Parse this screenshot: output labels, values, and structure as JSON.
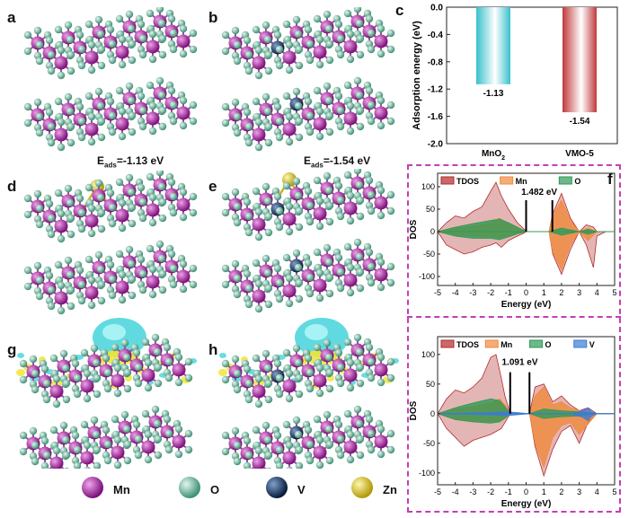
{
  "panels": {
    "a": "a",
    "b": "b",
    "c": "c",
    "d": "d",
    "e": "e",
    "f": "f",
    "g": "g",
    "h": "h"
  },
  "eads": {
    "d": {
      "prefix": "E",
      "sub": "ads",
      "value": "=-1.13 eV"
    },
    "e": {
      "prefix": "E",
      "sub": "ads",
      "value": "=-1.54 eV"
    }
  },
  "legend": [
    {
      "label": "Mn",
      "color": "#a21c9d",
      "icon": "mn-atom-icon"
    },
    {
      "label": "O",
      "color": "#6cc0a4",
      "icon": "o-atom-icon"
    },
    {
      "label": "V",
      "color": "#0d2b5a",
      "icon": "v-atom-icon"
    },
    {
      "label": "Zn",
      "color": "#e3c91c",
      "icon": "zn-atom-icon"
    }
  ],
  "colors": {
    "mn": "#a21c9d",
    "o": "#6cc0a4",
    "v": "#0d2b5a",
    "zn": "#e3c91c",
    "iso_cyan": "#4fd6dd",
    "iso_yellow": "#f0e53a",
    "tdos": "#b22a2a",
    "mn_dos": "#f08a3c",
    "o_dos": "#2e9a56",
    "v_dos": "#3c7bd4",
    "dash": "#c43fb6"
  },
  "chart_data": [
    {
      "type": "bar",
      "panel": "c",
      "categories": [
        "MnO2",
        "VMO-5"
      ],
      "category_display": [
        {
          "main": "MnO",
          "sub": "2"
        },
        {
          "main": "VMO-5",
          "sub": ""
        }
      ],
      "values": [
        -1.13,
        -1.54
      ],
      "value_labels": [
        "-1.13",
        "-1.54"
      ],
      "bar_colors": [
        "#39c1cc",
        "#c0393b"
      ],
      "ylabel": "Adsorption energy (eV)",
      "ylim": [
        -2.0,
        0.0
      ],
      "yticks": [
        "0.0",
        "-0.4",
        "-0.8",
        "-1.2",
        "-1.6",
        "-2.0"
      ]
    },
    {
      "type": "area",
      "panel": "f-top",
      "xlabel": "Energy (eV)",
      "ylabel": "DOS",
      "xlim": [
        -5,
        5
      ],
      "ylim": [
        -120,
        130
      ],
      "xticks": [
        "-5",
        "-4",
        "-3",
        "-2",
        "-1",
        "0",
        "1",
        "2",
        "3",
        "4",
        "5"
      ],
      "yticks": [
        "100",
        "50",
        "0",
        "-50",
        "-100"
      ],
      "legend": [
        "TDOS",
        "Mn",
        "O"
      ],
      "gap_label": "1.482 eV",
      "gap_range": [
        0.0,
        1.482
      ],
      "series": [
        {
          "name": "TDOS",
          "x": [
            -5,
            -4.5,
            -4,
            -3.5,
            -3,
            -2.5,
            -2,
            -1.7,
            -1.4,
            -1,
            -0.5,
            -0.1,
            0,
            1.3,
            1.5,
            2,
            2.5,
            3,
            3.4,
            3.8,
            4,
            4.5,
            5
          ],
          "up": [
            0,
            20,
            35,
            30,
            45,
            55,
            90,
            110,
            80,
            50,
            20,
            5,
            0,
            0,
            40,
            85,
            30,
            0,
            15,
            10,
            0,
            0,
            0
          ],
          "down": [
            0,
            -30,
            -40,
            -50,
            -45,
            -35,
            -30,
            -25,
            -35,
            -20,
            -10,
            -3,
            0,
            0,
            -50,
            -95,
            -40,
            0,
            -30,
            -80,
            -10,
            0,
            0
          ]
        },
        {
          "name": "Mn",
          "x": [
            -5,
            -4,
            -3,
            -2,
            -1.5,
            -1,
            -0.5,
            0,
            1.3,
            1.5,
            2,
            2.5,
            3,
            3.5,
            4,
            5
          ],
          "up": [
            0,
            8,
            12,
            20,
            30,
            18,
            8,
            0,
            0,
            35,
            70,
            25,
            0,
            8,
            0,
            0
          ],
          "down": [
            0,
            -8,
            -10,
            -12,
            -14,
            -10,
            -5,
            0,
            0,
            -45,
            -85,
            -30,
            0,
            -20,
            0,
            0
          ]
        },
        {
          "name": "O",
          "x": [
            -5,
            -4,
            -3,
            -2,
            -1.5,
            -1,
            -0.5,
            0,
            1.3,
            2,
            3,
            3.5,
            4,
            5
          ],
          "up": [
            0,
            10,
            18,
            25,
            28,
            20,
            10,
            0,
            0,
            8,
            0,
            5,
            0,
            0
          ],
          "down": [
            0,
            -10,
            -15,
            -15,
            -18,
            -12,
            -5,
            0,
            0,
            -8,
            0,
            -6,
            0,
            0
          ]
        }
      ]
    },
    {
      "type": "area",
      "panel": "f-bottom",
      "xlabel": "Energy (eV)",
      "ylabel": "DOS",
      "xlim": [
        -5,
        5
      ],
      "ylim": [
        -120,
        130
      ],
      "xticks": [
        "-5",
        "-4",
        "-3",
        "-2",
        "-1",
        "0",
        "1",
        "2",
        "3",
        "4",
        "5"
      ],
      "yticks": [
        "100",
        "50",
        "0",
        "-50",
        "-100"
      ],
      "legend": [
        "TDOS",
        "Mn",
        "O",
        "V"
      ],
      "gap_label": "1.091 eV",
      "gap_range": [
        -0.9,
        0.191
      ],
      "series": [
        {
          "name": "TDOS",
          "x": [
            -5,
            -4.5,
            -4,
            -3.5,
            -3,
            -2.5,
            -2,
            -1.7,
            -1.4,
            -1.2,
            -0.9,
            0.2,
            0.5,
            1,
            1.5,
            2,
            2.5,
            3,
            3.5,
            4,
            5
          ],
          "up": [
            0,
            25,
            40,
            35,
            45,
            60,
            95,
            100,
            60,
            30,
            0,
            0,
            45,
            50,
            20,
            30,
            15,
            5,
            10,
            0,
            0
          ],
          "down": [
            0,
            -25,
            -40,
            -55,
            -45,
            -40,
            -35,
            -30,
            -25,
            -15,
            0,
            0,
            -55,
            -105,
            -60,
            -30,
            -20,
            -50,
            -15,
            0,
            0
          ]
        },
        {
          "name": "Mn",
          "x": [
            -5,
            -4,
            -3,
            -2,
            -1.5,
            -1.2,
            -0.9,
            0.2,
            0.5,
            1,
            1.5,
            2,
            2.5,
            3,
            4,
            5
          ],
          "up": [
            0,
            8,
            12,
            18,
            25,
            15,
            0,
            0,
            30,
            45,
            15,
            20,
            10,
            5,
            0,
            0
          ],
          "down": [
            0,
            -10,
            -12,
            -14,
            -12,
            -8,
            0,
            0,
            -50,
            -90,
            -40,
            -20,
            -15,
            -35,
            0,
            0
          ]
        },
        {
          "name": "O",
          "x": [
            -5,
            -4,
            -3,
            -2,
            -1.5,
            -1.2,
            -0.9,
            0.2,
            1,
            2,
            3,
            4,
            5
          ],
          "up": [
            0,
            10,
            18,
            25,
            22,
            12,
            0,
            0,
            8,
            5,
            3,
            0,
            0
          ],
          "down": [
            0,
            -10,
            -14,
            -16,
            -14,
            -8,
            0,
            0,
            -8,
            -5,
            -4,
            0,
            0
          ]
        },
        {
          "name": "V",
          "x": [
            -5,
            -2,
            -1,
            0.2,
            2.5,
            3.2,
            3.5,
            3.7,
            4,
            5
          ],
          "up": [
            0,
            2,
            3,
            0,
            0,
            5,
            10,
            3,
            0,
            0
          ],
          "down": [
            0,
            -2,
            -3,
            0,
            0,
            -6,
            -12,
            -4,
            0,
            0
          ]
        }
      ]
    }
  ]
}
